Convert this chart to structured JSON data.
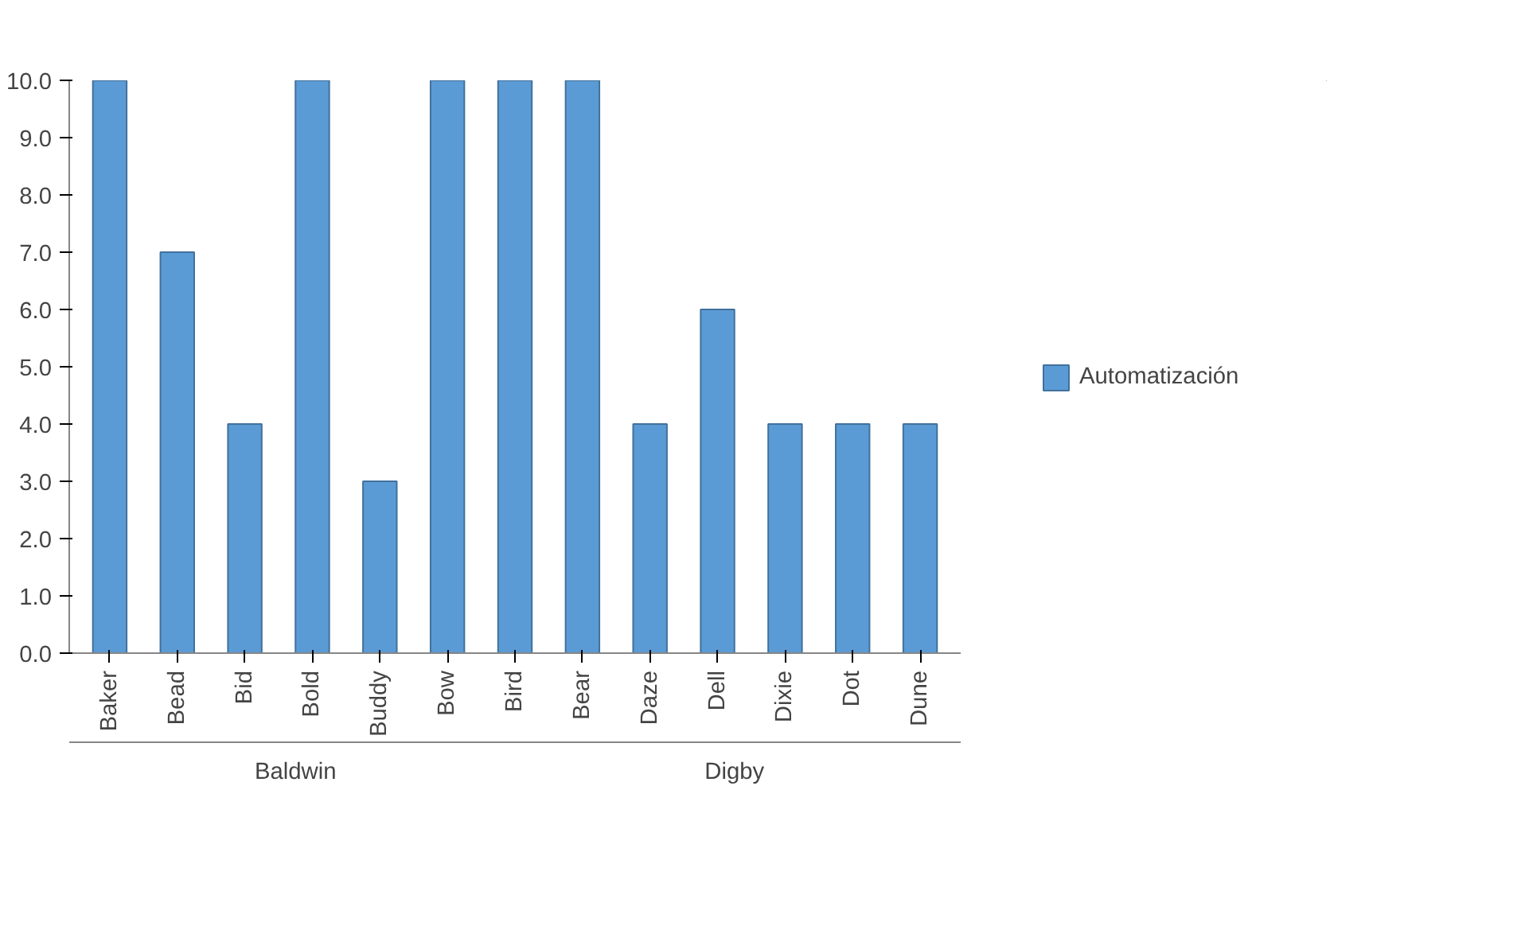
{
  "chart_data": {
    "type": "bar",
    "categories": [
      "Baker",
      "Bead",
      "Bid",
      "Bold",
      "Buddy",
      "Bow",
      "Bird",
      "Bear",
      "Daze",
      "Dell",
      "Dixie",
      "Dot",
      "Dune"
    ],
    "series": [
      {
        "name": "Automatización",
        "color": "#5b9bd5",
        "values": [
          10,
          7,
          4,
          10,
          3,
          10,
          10,
          10,
          4,
          6,
          4,
          4,
          4
        ]
      }
    ],
    "ylim": [
      0,
      10
    ],
    "yticks": [
      {
        "value": 0,
        "label": "0.0"
      },
      {
        "value": 1,
        "label": "1.0"
      },
      {
        "value": 2,
        "label": "2.0"
      },
      {
        "value": 3,
        "label": "3.0"
      },
      {
        "value": 4,
        "label": "4.0"
      },
      {
        "value": 5,
        "label": "5.0"
      },
      {
        "value": 6,
        "label": "6.0"
      },
      {
        "value": 7,
        "label": "7.0"
      },
      {
        "value": 8,
        "label": "8.0"
      },
      {
        "value": 9,
        "label": "9.0"
      },
      {
        "value": 10,
        "label": "10.0"
      }
    ],
    "annotations": [
      "Baldwin",
      "Digby"
    ],
    "legend": "right",
    "grid": false
  }
}
